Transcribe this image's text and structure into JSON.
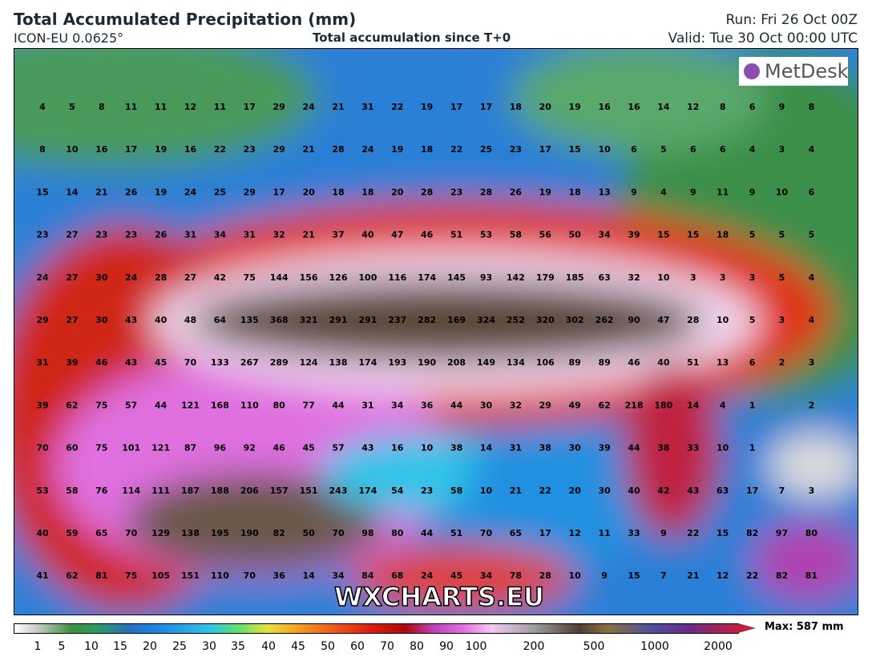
{
  "header": {
    "title": "Total Accumulated Precipitation (mm)",
    "model": "ICON-EU 0.0625°",
    "subtitle": "Total accumulation since T+0",
    "run": "Run: Fri 26 Oct 00Z",
    "valid": "Valid: Tue 30 Oct 00:00 UTC"
  },
  "logo": "MetDesk",
  "watermark": "WXCHARTS.EU",
  "max_label": "Max: 587 mm",
  "colorbar_ticks": [
    1,
    5,
    10,
    15,
    20,
    25,
    30,
    35,
    40,
    45,
    50,
    60,
    70,
    80,
    90,
    100,
    200,
    500,
    1000,
    2000
  ],
  "grid": {
    "rows": [
      [
        4,
        5,
        8,
        11,
        11,
        12,
        11,
        17,
        29,
        24,
        21,
        31,
        22,
        19,
        17,
        17,
        18,
        20,
        19,
        16,
        16,
        14,
        12,
        8,
        6,
        9,
        8
      ],
      [
        8,
        10,
        16,
        17,
        19,
        16,
        22,
        23,
        29,
        21,
        28,
        24,
        19,
        18,
        22,
        25,
        23,
        17,
        15,
        10,
        6,
        5,
        6,
        6,
        4,
        3,
        4
      ],
      [
        15,
        14,
        21,
        26,
        19,
        24,
        25,
        29,
        17,
        20,
        18,
        18,
        20,
        28,
        23,
        28,
        26,
        19,
        18,
        13,
        9,
        4,
        9,
        11,
        9,
        10,
        6
      ],
      [
        23,
        27,
        23,
        23,
        26,
        31,
        34,
        31,
        32,
        21,
        37,
        40,
        47,
        46,
        51,
        53,
        58,
        56,
        50,
        34,
        39,
        15,
        15,
        18,
        5,
        5,
        5
      ],
      [
        24,
        27,
        30,
        24,
        28,
        27,
        42,
        75,
        144,
        156,
        126,
        100,
        116,
        174,
        145,
        93,
        142,
        179,
        185,
        63,
        32,
        10,
        3,
        3,
        3,
        5,
        4
      ],
      [
        29,
        27,
        30,
        43,
        40,
        48,
        64,
        135,
        368,
        321,
        291,
        291,
        237,
        282,
        169,
        324,
        252,
        320,
        302,
        262,
        90,
        47,
        28,
        10,
        5,
        3,
        4
      ],
      [
        31,
        39,
        46,
        43,
        45,
        70,
        133,
        267,
        289,
        124,
        138,
        174,
        193,
        190,
        208,
        149,
        134,
        106,
        89,
        89,
        46,
        40,
        51,
        13,
        6,
        2,
        3
      ],
      [
        39,
        62,
        75,
        57,
        44,
        121,
        168,
        110,
        80,
        77,
        44,
        31,
        34,
        36,
        44,
        30,
        32,
        29,
        49,
        62,
        218,
        180,
        14,
        4,
        1,
        null,
        2
      ],
      [
        70,
        60,
        75,
        101,
        121,
        87,
        96,
        92,
        46,
        45,
        57,
        43,
        16,
        10,
        38,
        14,
        31,
        38,
        30,
        39,
        44,
        38,
        33,
        10,
        1,
        null,
        null
      ],
      [
        53,
        58,
        76,
        114,
        111,
        187,
        188,
        206,
        157,
        151,
        243,
        174,
        54,
        23,
        58,
        10,
        21,
        22,
        20,
        30,
        40,
        42,
        43,
        63,
        17,
        7,
        3
      ],
      [
        40,
        59,
        65,
        70,
        129,
        138,
        195,
        190,
        82,
        50,
        70,
        98,
        80,
        44,
        51,
        70,
        65,
        17,
        12,
        11,
        33,
        9,
        22,
        15,
        82,
        97,
        80
      ],
      [
        41,
        62,
        81,
        75,
        105,
        151,
        110,
        70,
        36,
        14,
        34,
        84,
        68,
        24,
        45,
        34,
        78,
        28,
        10,
        9,
        15,
        7,
        21,
        12,
        22,
        82,
        81
      ]
    ]
  }
}
